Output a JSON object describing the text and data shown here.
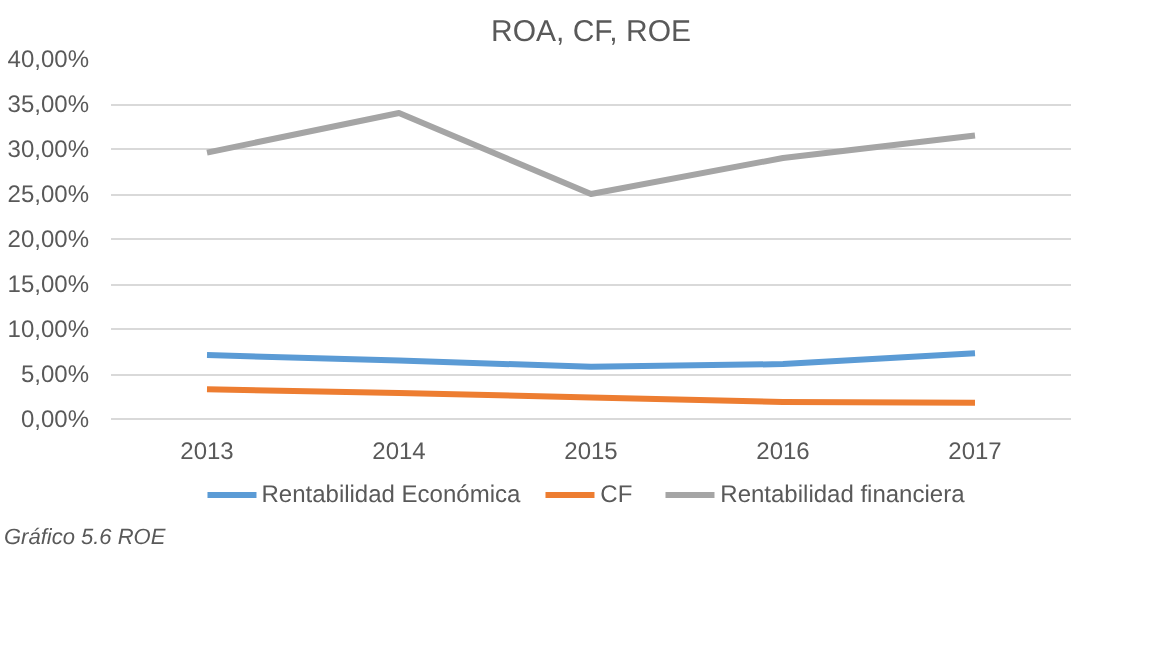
{
  "chart_data": {
    "type": "line",
    "title": "ROA, CF, ROE",
    "categories": [
      "2013",
      "2014",
      "2015",
      "2016",
      "2017"
    ],
    "series": [
      {
        "name": "Rentabilidad Económica",
        "color": "#5b9bd5",
        "values": [
          7.1,
          6.5,
          5.8,
          6.1,
          7.3
        ]
      },
      {
        "name": "CF",
        "color": "#ed7d31",
        "values": [
          3.3,
          2.9,
          2.4,
          1.9,
          1.8
        ]
      },
      {
        "name": "Rentabilidad financiera",
        "color": "#a5a5a5",
        "values": [
          29.6,
          34.0,
          25.0,
          29.0,
          31.5
        ]
      }
    ],
    "ylim": [
      0,
      40
    ],
    "yticks": [
      {
        "value": 0,
        "label": "0,00%"
      },
      {
        "value": 5,
        "label": "5,00%"
      },
      {
        "value": 10,
        "label": "10,00%"
      },
      {
        "value": 15,
        "label": "15,00%"
      },
      {
        "value": 20,
        "label": "20,00%"
      },
      {
        "value": 25,
        "label": "25,00%"
      },
      {
        "value": 30,
        "label": "30,00%"
      },
      {
        "value": 35,
        "label": "35,00%"
      },
      {
        "value": 40,
        "label": "40,00%"
      }
    ],
    "grid": "y",
    "legend": "bottom",
    "marker": "none",
    "line_style": "solid",
    "annotations": [
      "Gráfico 5.6 ROE"
    ]
  }
}
